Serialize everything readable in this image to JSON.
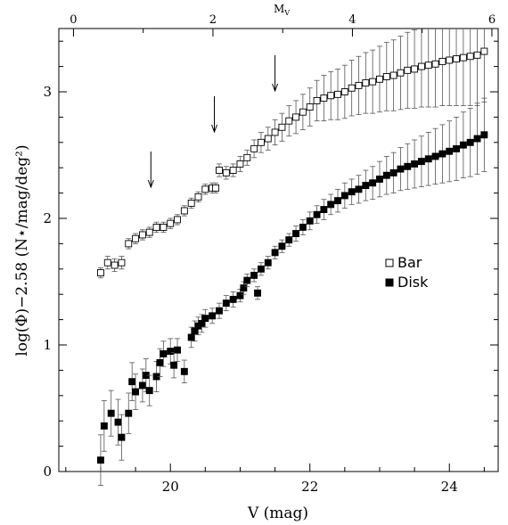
{
  "chart_data": {
    "type": "scatter",
    "xlabel": "V (mag)",
    "ylabel": "log(Φ)−2.58   (N⋆/mag/deg²)",
    "top_label": "M",
    "top_label_sub": "V",
    "xlim": [
      18.4,
      24.7
    ],
    "ylim": [
      0,
      3.5
    ],
    "x_ticks": [
      20,
      22,
      24
    ],
    "y_ticks": [
      0,
      1,
      2,
      3
    ],
    "top_ticks": [
      {
        "mv": 0,
        "v": 18.61
      },
      {
        "mv": 2,
        "v": 20.61
      },
      {
        "mv": 4,
        "v": 22.61
      },
      {
        "mv": 6,
        "v": 24.61
      }
    ],
    "arrows_x": [
      19.72,
      20.63,
      21.5
    ],
    "legend": {
      "placement": "right-middle",
      "entries": [
        {
          "label": "Bar",
          "marker": "open-square"
        },
        {
          "label": "Disk",
          "marker": "filled-square"
        }
      ]
    },
    "series": [
      {
        "name": "Bar",
        "marker": "open-square",
        "x": [
          19.0,
          19.1,
          19.2,
          19.3,
          19.4,
          19.5,
          19.6,
          19.7,
          19.8,
          19.9,
          20.0,
          20.1,
          20.2,
          20.3,
          20.4,
          20.5,
          20.6,
          20.65,
          20.7,
          20.8,
          20.9,
          21.0,
          21.1,
          21.2,
          21.3,
          21.4,
          21.5,
          21.6,
          21.7,
          21.8,
          21.9,
          22.0,
          22.1,
          22.2,
          22.3,
          22.4,
          22.5,
          22.6,
          22.7,
          22.8,
          22.9,
          23.0,
          23.1,
          23.2,
          23.3,
          23.4,
          23.5,
          23.6,
          23.7,
          23.8,
          23.9,
          24.0,
          24.1,
          24.2,
          24.3,
          24.4,
          24.5
        ],
        "y": [
          1.57,
          1.65,
          1.63,
          1.65,
          1.8,
          1.84,
          1.87,
          1.89,
          1.93,
          1.93,
          1.96,
          1.99,
          2.06,
          2.12,
          2.17,
          2.23,
          2.24,
          2.24,
          2.38,
          2.36,
          2.38,
          2.43,
          2.48,
          2.55,
          2.6,
          2.63,
          2.68,
          2.72,
          2.77,
          2.8,
          2.84,
          2.88,
          2.93,
          2.95,
          2.97,
          2.98,
          3.0,
          3.03,
          3.05,
          3.07,
          3.08,
          3.1,
          3.12,
          3.13,
          3.15,
          3.17,
          3.18,
          3.2,
          3.21,
          3.22,
          3.24,
          3.25,
          3.26,
          3.27,
          3.28,
          3.29,
          3.32
        ],
        "err": [
          0.04,
          0.05,
          0.05,
          0.05,
          0.04,
          0.04,
          0.04,
          0.04,
          0.04,
          0.04,
          0.04,
          0.04,
          0.04,
          0.04,
          0.04,
          0.04,
          0.04,
          0.04,
          0.05,
          0.05,
          0.05,
          0.06,
          0.06,
          0.07,
          0.08,
          0.09,
          0.1,
          0.11,
          0.12,
          0.13,
          0.14,
          0.15,
          0.16,
          0.18,
          0.19,
          0.2,
          0.21,
          0.22,
          0.23,
          0.24,
          0.25,
          0.26,
          0.27,
          0.28,
          0.29,
          0.3,
          0.31,
          0.32,
          0.33,
          0.34,
          0.35,
          0.36,
          0.37,
          0.38,
          0.39,
          0.4,
          0.4
        ]
      },
      {
        "name": "Disk",
        "marker": "filled-square",
        "x": [
          19.0,
          19.05,
          19.15,
          19.25,
          19.3,
          19.4,
          19.45,
          19.5,
          19.6,
          19.65,
          19.7,
          19.8,
          19.85,
          19.9,
          20.0,
          20.05,
          20.1,
          20.2,
          20.3,
          20.35,
          20.4,
          20.45,
          20.5,
          20.6,
          20.7,
          20.8,
          20.9,
          21.0,
          21.05,
          21.1,
          21.2,
          21.25,
          21.3,
          21.4,
          21.5,
          21.6,
          21.7,
          21.8,
          21.9,
          22.0,
          22.1,
          22.2,
          22.3,
          22.4,
          22.5,
          22.6,
          22.7,
          22.8,
          22.9,
          23.0,
          23.1,
          23.2,
          23.3,
          23.4,
          23.5,
          23.6,
          23.7,
          23.8,
          23.9,
          24.0,
          24.1,
          24.2,
          24.3,
          24.4,
          24.5
        ],
        "y": [
          0.09,
          0.36,
          0.46,
          0.39,
          0.27,
          0.46,
          0.71,
          0.63,
          0.68,
          0.76,
          0.64,
          0.75,
          0.86,
          0.93,
          0.95,
          0.84,
          0.96,
          0.79,
          1.06,
          1.11,
          1.15,
          1.17,
          1.21,
          1.23,
          1.27,
          1.33,
          1.36,
          1.39,
          1.45,
          1.51,
          1.55,
          1.41,
          1.6,
          1.65,
          1.73,
          1.78,
          1.83,
          1.88,
          1.93,
          1.98,
          2.03,
          2.07,
          2.11,
          2.14,
          2.18,
          2.21,
          2.23,
          2.26,
          2.28,
          2.31,
          2.34,
          2.36,
          2.39,
          2.41,
          2.43,
          2.45,
          2.47,
          2.49,
          2.51,
          2.53,
          2.55,
          2.58,
          2.6,
          2.63,
          2.66
        ],
        "err": [
          0.2,
          0.2,
          0.18,
          0.18,
          0.18,
          0.16,
          0.15,
          0.14,
          0.13,
          0.13,
          0.12,
          0.12,
          0.11,
          0.1,
          0.1,
          0.1,
          0.09,
          0.09,
          0.08,
          0.08,
          0.07,
          0.07,
          0.07,
          0.06,
          0.06,
          0.06,
          0.06,
          0.05,
          0.05,
          0.05,
          0.05,
          0.05,
          0.05,
          0.05,
          0.05,
          0.05,
          0.05,
          0.06,
          0.06,
          0.07,
          0.07,
          0.08,
          0.08,
          0.09,
          0.1,
          0.1,
          0.11,
          0.12,
          0.13,
          0.14,
          0.15,
          0.16,
          0.17,
          0.18,
          0.19,
          0.2,
          0.21,
          0.22,
          0.23,
          0.24,
          0.25,
          0.26,
          0.27,
          0.28,
          0.29
        ]
      }
    ]
  }
}
